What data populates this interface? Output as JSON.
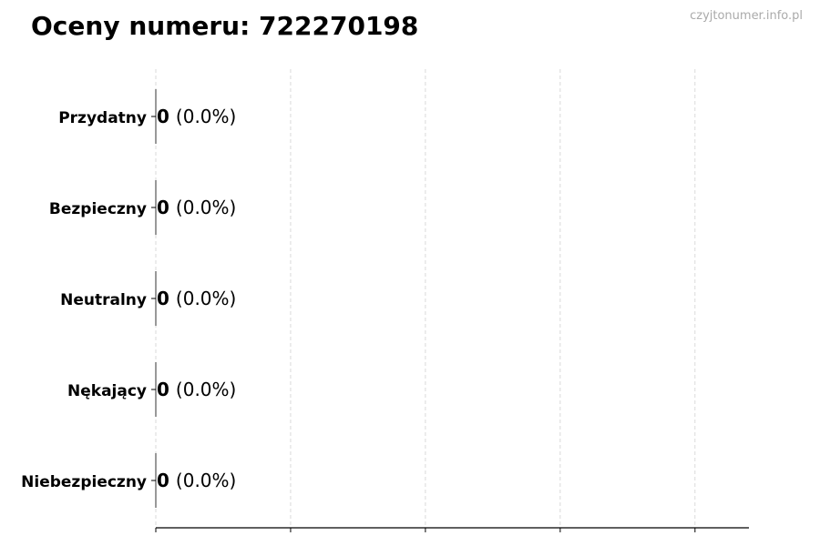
{
  "title": "Oceny numeru: 722270198",
  "watermark": "czyjtonumer.info.pl",
  "chart_data": {
    "type": "bar",
    "orientation": "horizontal",
    "categories": [
      "Przydatny",
      "Bezpieczny",
      "Neutralny",
      "Nękający",
      "Niebezpieczny"
    ],
    "values": [
      0,
      0,
      0,
      0,
      0
    ],
    "data_labels": [
      {
        "count": "0",
        "percent": "(0.0%)"
      },
      {
        "count": "0",
        "percent": "(0.0%)"
      },
      {
        "count": "0",
        "percent": "(0.0%)"
      },
      {
        "count": "0",
        "percent": "(0.0%)"
      },
      {
        "count": "0",
        "percent": "(0.0%)"
      }
    ],
    "xlim": [
      0,
      0.044
    ],
    "xticks": [
      0,
      0.01,
      0.02,
      0.03,
      0.04
    ],
    "xtick_labels_shown": false,
    "grid": "x, dashed",
    "bar_color": "#333333"
  }
}
